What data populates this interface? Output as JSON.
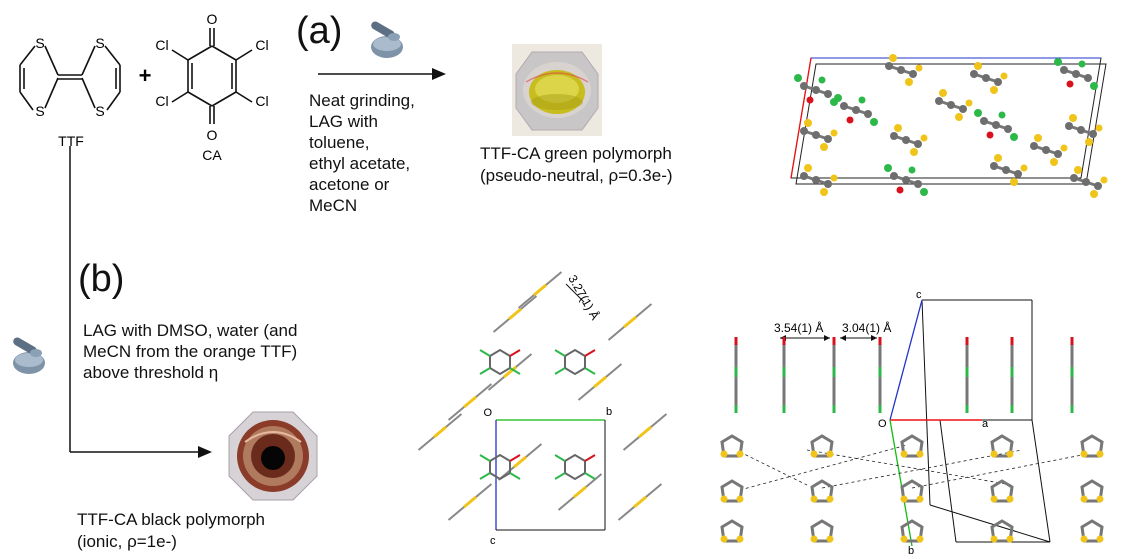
{
  "molecules": {
    "ttf_label": "TTF",
    "ca_label": "CA",
    "plus": "+",
    "atoms": {
      "S": "S",
      "Cl": "Cl",
      "O": "O"
    }
  },
  "path_a": {
    "label": "(a)",
    "conditions": [
      "Neat grinding,",
      "LAG with",
      "toluene,",
      "ethyl acetate,",
      "acetone or",
      "MeCN"
    ],
    "product_line1": "TTF-CA green polymorph",
    "product_line2": "(pseudo-neutral, ρ=0.3e-)"
  },
  "path_b": {
    "label": "(b)",
    "conditions": [
      "LAG with DMSO, water (and",
      "MeCN from the orange TTF)",
      "above threshold η"
    ],
    "product_line1": "TTF-CA black polymorph",
    "product_line2": "(ionic, ρ=1e-)"
  },
  "crystal_mid": {
    "distance": "3.27(1) Å",
    "axis_o": "O",
    "axis_b": "b",
    "axis_c": "c"
  },
  "crystal_right": {
    "distance1": "3.54(1) Å",
    "distance2": "3.04(1) Å",
    "axis_c": "c",
    "axis_o": "O",
    "axis_a": "a",
    "axis_b": "b"
  },
  "colors": {
    "sulfur": "#f0c419",
    "chlorine": "#2db84a",
    "oxygen": "#d8121c",
    "carbon": "#6e6e6e",
    "green_solution": "#c9c21b",
    "cell_red": "#e11",
    "cell_green": "#1b1",
    "cell_blue": "#23c"
  }
}
